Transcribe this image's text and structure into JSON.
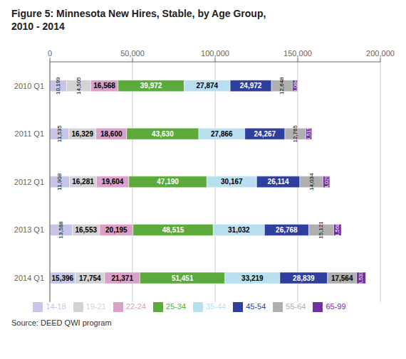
{
  "chart_data": {
    "type": "bar",
    "orientation": "horizontal",
    "stacked": true,
    "title": "Figure 5: Minnesota New Hires, Stable, by Age Group,\n2010 - 2014",
    "annotations": [
      "Source: DEED QWI program"
    ],
    "categories": [
      "2010 Q1",
      "2011 Q1",
      "2012 Q1",
      "2013 Q1",
      "2014 Q1"
    ],
    "series": [
      {
        "name": "14-18",
        "color": "#c5c5e8",
        "values": [
          10199,
          11535,
          11908,
          13588,
          15396
        ],
        "value_labels": [
          "10,199",
          "11,535",
          "11,908",
          "13,588",
          "15,396"
        ]
      },
      {
        "name": "19-21",
        "color": "#d3d3d3",
        "values": [
          14505,
          16329,
          16281,
          16553,
          17754
        ],
        "value_labels": [
          "14,505",
          "16,329",
          "16,281",
          "16,553",
          "17,754"
        ]
      },
      {
        "name": "22-24",
        "color": "#d9a0c8",
        "values": [
          16568,
          18600,
          19604,
          20195,
          21371
        ],
        "value_labels": [
          "16,568",
          "18,600",
          "19,604",
          "20,195",
          "21,371"
        ]
      },
      {
        "name": "25-34",
        "color": "#5caa3c",
        "values": [
          39972,
          43630,
          47190,
          48515,
          51451
        ],
        "value_labels": [
          "39,972",
          "43,630",
          "47,190",
          "48,515",
          "51,451"
        ]
      },
      {
        "name": "35-44",
        "color": "#b8dff0",
        "values": [
          27874,
          27866,
          30167,
          31032,
          33219
        ],
        "value_labels": [
          "27,874",
          "27,866",
          "30,167",
          "31,032",
          "33,219"
        ]
      },
      {
        "name": "45-54",
        "color": "#2e3f9e",
        "values": [
          24972,
          24267,
          26114,
          26768,
          28839
        ],
        "value_labels": [
          "24,972",
          "24,267",
          "26,114",
          "26,768",
          "28,839"
        ]
      },
      {
        "name": "55-64",
        "color": "#b0b0b0",
        "values": [
          12648,
          12765,
          14034,
          15121,
          17564
        ],
        "value_labels": [
          "12,648",
          "12,765",
          "14,034",
          "15,121",
          "17,564"
        ]
      },
      {
        "name": "65-99",
        "color": "#7030a0",
        "values": [
          3084,
          3515,
          4029,
          4568,
          5533
        ],
        "value_labels": [
          "3,084",
          "3,515",
          "4,029",
          "4,568",
          "5,533"
        ]
      }
    ],
    "xlim": [
      0,
      200000
    ],
    "xticks": [
      0,
      {
        "value": 50000,
        "label": "50,000"
      },
      {
        "value": 100000,
        "label": "100,000"
      },
      {
        "value": 150000,
        "label": "150,000"
      },
      {
        "value": 200000,
        "label": "200,000"
      }
    ],
    "grid": true,
    "legend": "bottom",
    "data_labels": true
  }
}
